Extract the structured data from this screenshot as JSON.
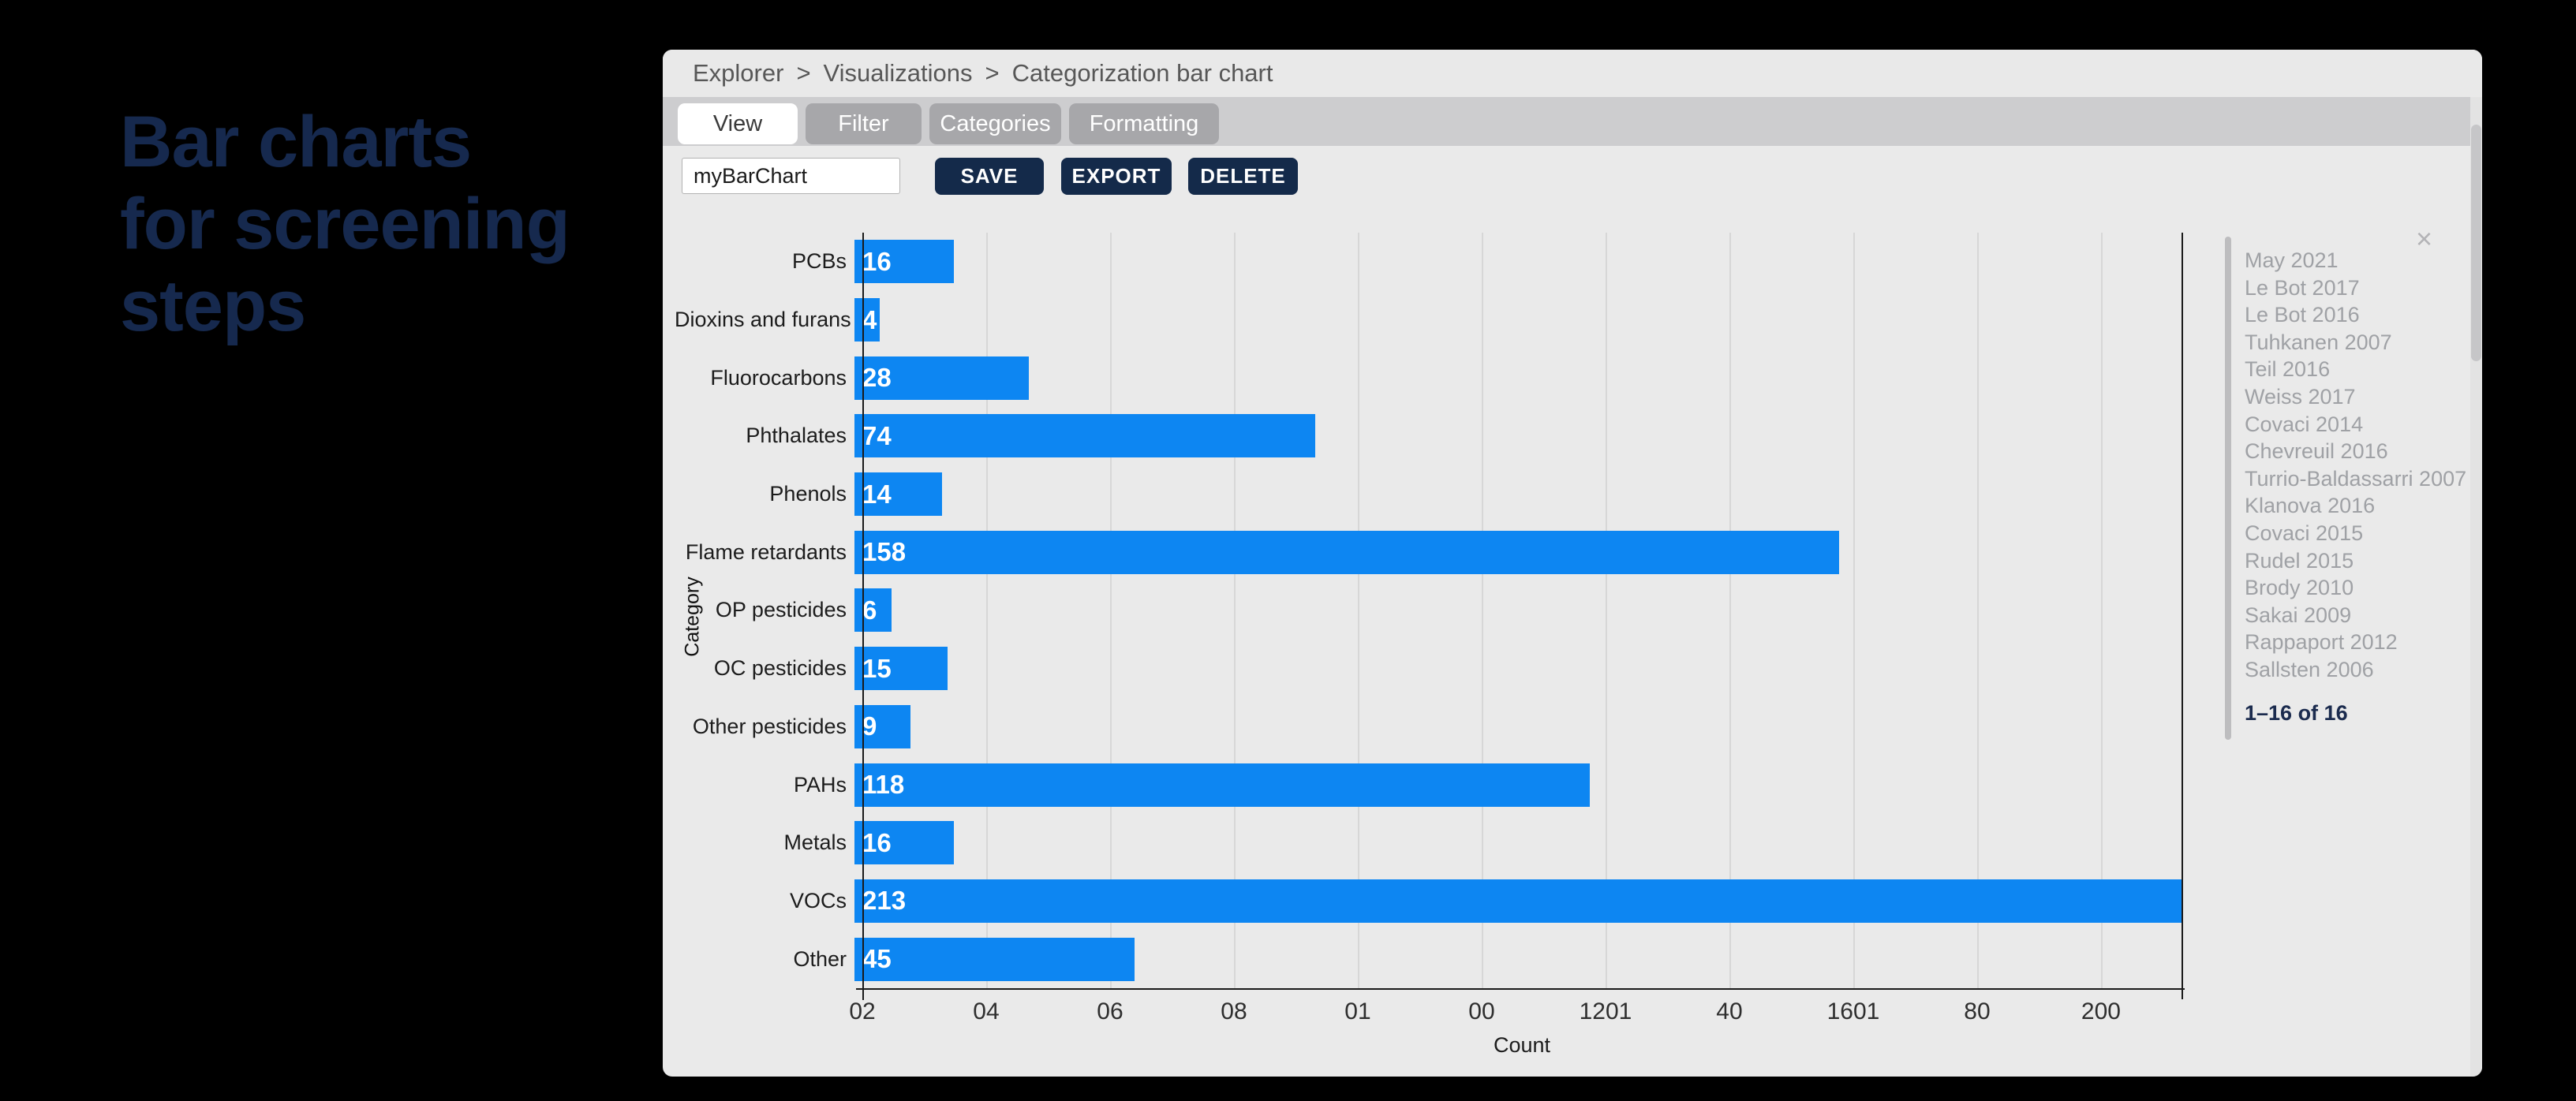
{
  "slide": {
    "title_lines": [
      "Bar charts",
      "for screening",
      "steps"
    ]
  },
  "panel": {
    "breadcrumb": {
      "items": [
        "Explorer",
        "Visualizations",
        "Categorization bar chart"
      ],
      "separator": ">"
    },
    "tabs": [
      {
        "label": "View",
        "active": true
      },
      {
        "label": "Filter",
        "active": false
      },
      {
        "label": "Categories",
        "active": false
      },
      {
        "label": "Formatting",
        "active": false
      }
    ],
    "toolbar": {
      "chart_name_value": "myBarChart",
      "save_label": "SAVE",
      "export_label": "EXPORT",
      "delete_label": "DELETE"
    },
    "sidebar": {
      "close_icon": "×",
      "items": [
        "May 2021",
        "Le Bot 2017",
        "Le Bot 2016",
        "Tuhkanen 2007",
        "Teil 2016",
        "Weiss 2017",
        "Covaci 2014",
        "Chevreuil 2016",
        "Turrio-Baldassarri 2007",
        "Klanova 2016",
        "Covaci 2015",
        "Rudel 2015",
        "Brody 2010",
        "Sakai 2009",
        "Rappaport 2012",
        "Sallsten 2006"
      ],
      "pagination": "1–16 of 16"
    }
  },
  "chart_data": {
    "type": "bar",
    "orientation": "horizontal",
    "title": "",
    "xlabel": "Count",
    "ylabel": "Category",
    "categories": [
      "PCBs",
      "Dioxins and furans",
      "Fluorocarbons",
      "Phthalates",
      "Phenols",
      "Flame retardants",
      "OP pesticides",
      "OC pesticides",
      "Other pesticides",
      "PAHs",
      "Metals",
      "VOCs",
      "Other"
    ],
    "values": [
      16,
      4,
      28,
      74,
      14,
      158,
      6,
      15,
      9,
      118,
      16,
      213,
      45
    ],
    "xlim": [
      0,
      213
    ],
    "grid": true,
    "grid_interval": 20,
    "x_tick_positions": [
      0,
      20,
      40,
      60,
      80,
      100,
      120,
      140,
      160,
      180,
      200
    ],
    "x_tick_labels_displayed": [
      "02",
      "04",
      "06",
      "08",
      "01",
      "00",
      "1201",
      "40",
      "1601",
      "80",
      "200"
    ],
    "legend": null
  },
  "colors": {
    "bar_blue": "#0d86f2",
    "button_navy": "#142a4a",
    "title_navy": "#16294e",
    "page_background": "#000000",
    "panel_background": "#eaeaea"
  }
}
